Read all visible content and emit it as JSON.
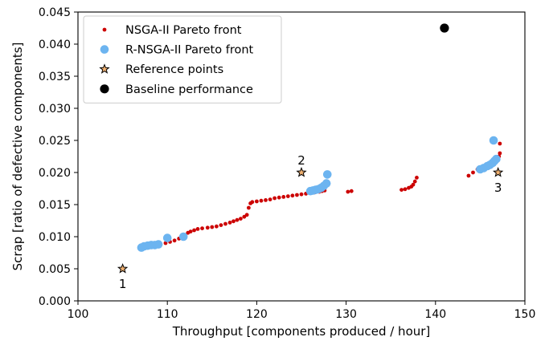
{
  "chart_data": {
    "type": "scatter",
    "xlabel": "Throughput [components produced / hour]",
    "ylabel": "Scrap [ratio of defective components]",
    "xlim": [
      100,
      150
    ],
    "ylim": [
      0.0,
      0.045
    ],
    "x_ticks": [
      100,
      110,
      120,
      130,
      140,
      150
    ],
    "x_tick_labels": [
      "100",
      "110",
      "120",
      "130",
      "140",
      "150"
    ],
    "y_ticks": [
      0.0,
      0.005,
      0.01,
      0.015,
      0.02,
      0.025,
      0.03,
      0.035,
      0.04,
      0.045
    ],
    "y_tick_labels": [
      "0.000",
      "0.005",
      "0.010",
      "0.015",
      "0.020",
      "0.025",
      "0.030",
      "0.035",
      "0.040",
      "0.045"
    ],
    "grid": false,
    "legend_position": "top-left",
    "series": [
      {
        "name": "NSGA-II Pareto front",
        "marker": "small-dot",
        "color": "#cc0000",
        "points": [
          [
            107.2,
            0.0083
          ],
          [
            107.8,
            0.0085
          ],
          [
            108.5,
            0.0087
          ],
          [
            109.2,
            0.0089
          ],
          [
            109.8,
            0.009
          ],
          [
            110.3,
            0.0092
          ],
          [
            110.8,
            0.0094
          ],
          [
            111.3,
            0.0097
          ],
          [
            111.9,
            0.0101
          ],
          [
            112.3,
            0.0106
          ],
          [
            112.6,
            0.0108
          ],
          [
            113.0,
            0.011
          ],
          [
            113.4,
            0.0112
          ],
          [
            113.9,
            0.0113
          ],
          [
            114.5,
            0.0114
          ],
          [
            115.0,
            0.0115
          ],
          [
            115.5,
            0.0116
          ],
          [
            116.0,
            0.0118
          ],
          [
            116.5,
            0.012
          ],
          [
            117.0,
            0.0122
          ],
          [
            117.4,
            0.0124
          ],
          [
            117.8,
            0.0126
          ],
          [
            118.2,
            0.0128
          ],
          [
            118.6,
            0.0131
          ],
          [
            118.9,
            0.0134
          ],
          [
            119.1,
            0.0145
          ],
          [
            119.3,
            0.0152
          ],
          [
            119.5,
            0.0154
          ],
          [
            120.0,
            0.0155
          ],
          [
            120.5,
            0.0156
          ],
          [
            121.0,
            0.0157
          ],
          [
            121.5,
            0.0158
          ],
          [
            122.0,
            0.016
          ],
          [
            122.5,
            0.0161
          ],
          [
            123.0,
            0.0162
          ],
          [
            123.5,
            0.0163
          ],
          [
            124.0,
            0.0164
          ],
          [
            124.5,
            0.0165
          ],
          [
            125.0,
            0.0166
          ],
          [
            125.5,
            0.0167
          ],
          [
            126.0,
            0.0168
          ],
          [
            126.5,
            0.0169
          ],
          [
            127.0,
            0.017
          ],
          [
            127.3,
            0.0171
          ],
          [
            127.6,
            0.0172
          ],
          [
            130.2,
            0.017
          ],
          [
            130.6,
            0.0171
          ],
          [
            136.2,
            0.0173
          ],
          [
            136.6,
            0.0174
          ],
          [
            137.0,
            0.0176
          ],
          [
            137.3,
            0.0178
          ],
          [
            137.5,
            0.0181
          ],
          [
            137.7,
            0.0186
          ],
          [
            137.9,
            0.0192
          ],
          [
            143.7,
            0.0195
          ],
          [
            144.2,
            0.02
          ],
          [
            144.7,
            0.0205
          ],
          [
            145.2,
            0.0208
          ],
          [
            145.6,
            0.021
          ],
          [
            146.0,
            0.0212
          ],
          [
            146.4,
            0.0215
          ],
          [
            146.8,
            0.0218
          ],
          [
            147.0,
            0.022
          ],
          [
            147.1,
            0.0225
          ],
          [
            147.2,
            0.023
          ],
          [
            147.2,
            0.0245
          ]
        ]
      },
      {
        "name": "R-NSGA-II Pareto front",
        "marker": "large-dot",
        "color": "#6cb4f0",
        "points": [
          [
            107.1,
            0.0083
          ],
          [
            107.4,
            0.0085
          ],
          [
            107.8,
            0.0086
          ],
          [
            108.2,
            0.0087
          ],
          [
            108.6,
            0.0087
          ],
          [
            109.0,
            0.0088
          ],
          [
            110.0,
            0.0098
          ],
          [
            111.8,
            0.01
          ],
          [
            126.0,
            0.0171
          ],
          [
            126.3,
            0.0172
          ],
          [
            126.6,
            0.0173
          ],
          [
            126.9,
            0.0174
          ],
          [
            127.2,
            0.0176
          ],
          [
            127.5,
            0.0179
          ],
          [
            127.8,
            0.0183
          ],
          [
            127.9,
            0.0197
          ],
          [
            145.0,
            0.0205
          ],
          [
            145.4,
            0.0207
          ],
          [
            145.8,
            0.021
          ],
          [
            146.1,
            0.0212
          ],
          [
            146.4,
            0.0215
          ],
          [
            146.6,
            0.0218
          ],
          [
            146.8,
            0.0221
          ],
          [
            146.5,
            0.025
          ]
        ]
      },
      {
        "name": "Reference points",
        "marker": "star",
        "color": "#f0b070",
        "points": [
          [
            105,
            0.005
          ],
          [
            125,
            0.02
          ],
          [
            147,
            0.02
          ]
        ],
        "labels": [
          "1",
          "2",
          "3"
        ]
      },
      {
        "name": "Baseline performance",
        "marker": "big-dot",
        "color": "#000000",
        "points": [
          [
            141,
            0.0425
          ]
        ]
      }
    ]
  }
}
